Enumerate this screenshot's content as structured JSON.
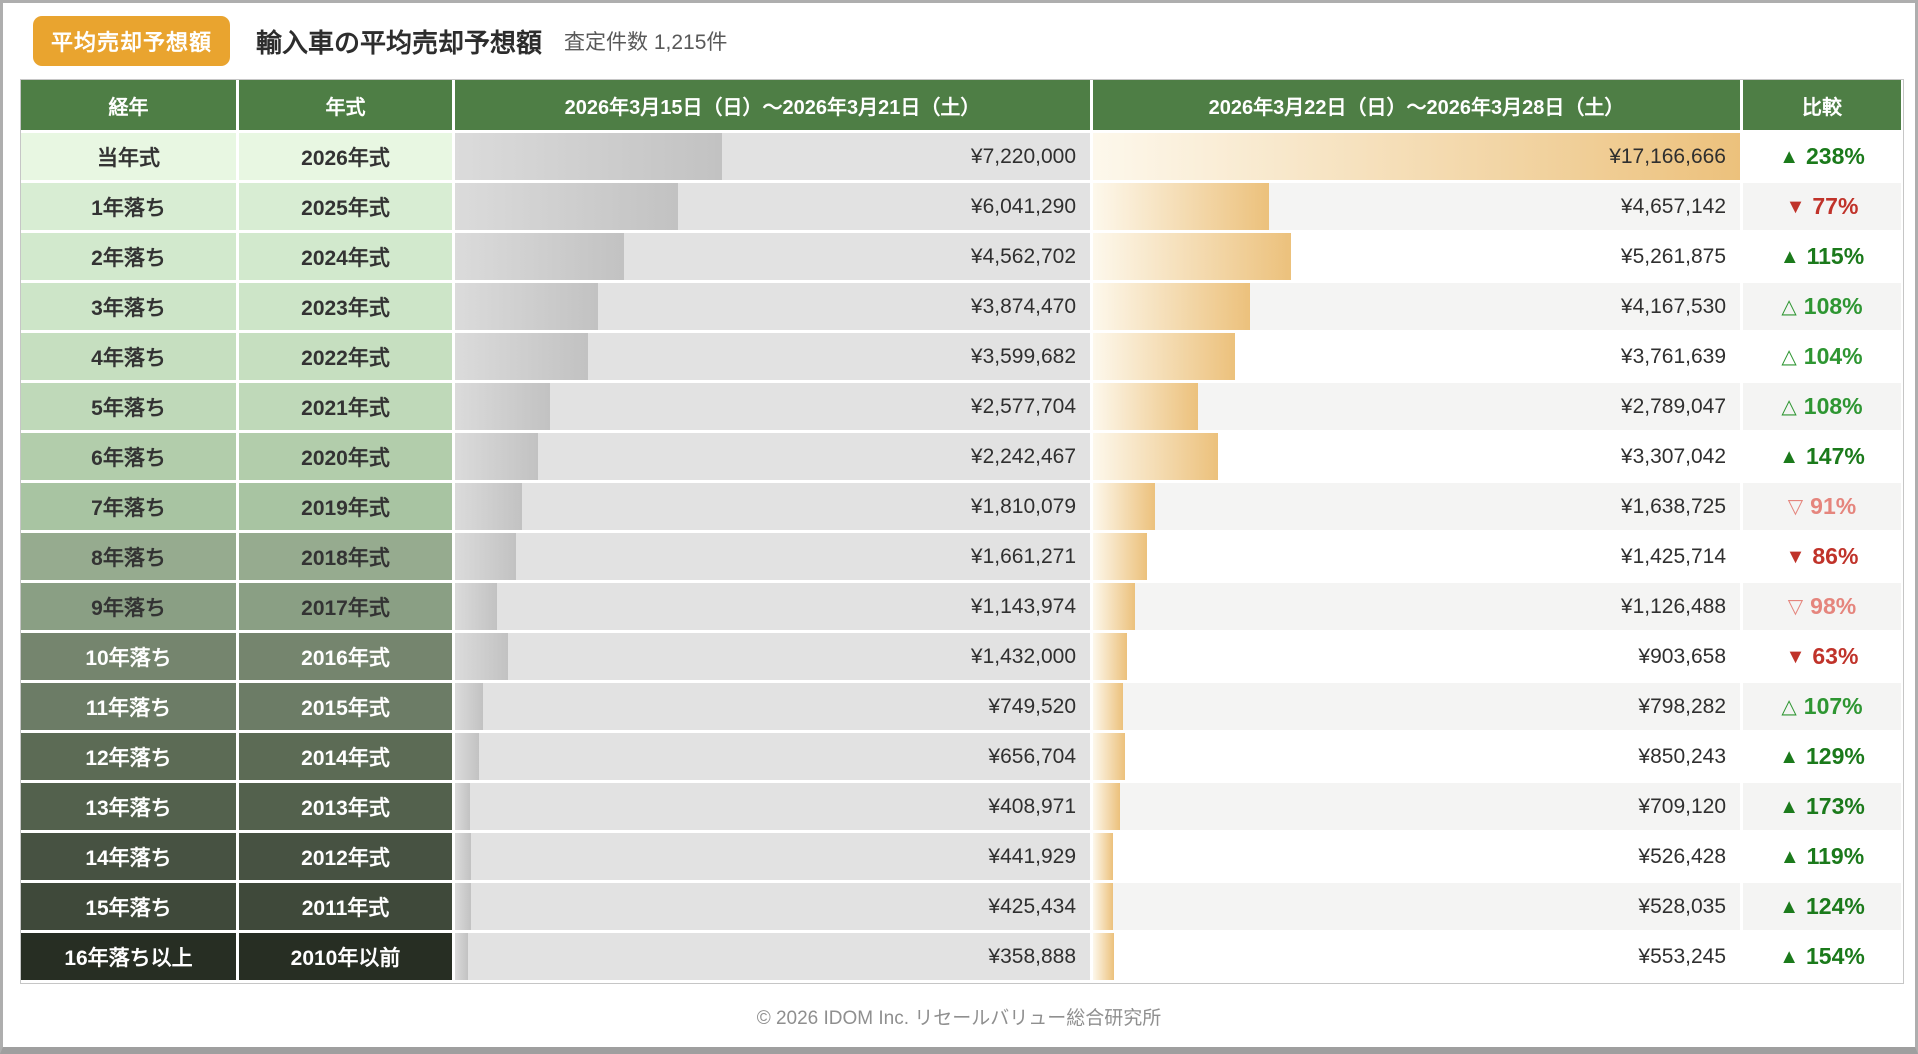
{
  "header": {
    "badge": "平均売却予想額",
    "badge_color": "#e9a42f",
    "title": "輸入車の平均売却予想額",
    "subtitle": "査定件数 1,215件"
  },
  "table": {
    "columns": [
      "経年",
      "年式",
      "2026年3月15日（日）〜2026年3月21日（土）",
      "2026年3月22日（日）〜2026年3月28日（土）",
      "比較"
    ],
    "header_bg": "#4e7e45",
    "max_value": 17166666,
    "styles": {
      "week1_cell_bg": "#e2e2e2",
      "week1_bar_gradient": [
        "#dbdbdb",
        "#c2c2c2"
      ],
      "week2_bar_gradient": [
        "#fdf8ec",
        "#ecc17c"
      ],
      "alt_row_bg": "#f4f4f3",
      "plain_row_bg": "#ffffff",
      "comparison_colors": {
        "up_filled": "#1b7a1b",
        "up_outline": "#2e9632",
        "down_filled": "#c0332a",
        "down_outline": "#e5857d"
      }
    },
    "rows": [
      {
        "age": "当年式",
        "model_year": "2026年式",
        "label_bg": "#e8f7e2",
        "label_text": "#333333",
        "week1_value": 7220000,
        "week1_display": "¥7,220,000",
        "week2_value": 17166666,
        "week2_display": "¥17,166,666",
        "compare_pct": "238%",
        "direction": "up",
        "filled": true
      },
      {
        "age": "1年落ち",
        "model_year": "2025年式",
        "label_bg": "#d8edd3",
        "label_text": "#333333",
        "week1_value": 6041290,
        "week1_display": "¥6,041,290",
        "week2_value": 4657142,
        "week2_display": "¥4,657,142",
        "compare_pct": "77%",
        "direction": "down",
        "filled": true
      },
      {
        "age": "2年落ち",
        "model_year": "2024年式",
        "label_bg": "#d2e9cd",
        "label_text": "#333333",
        "week1_value": 4562702,
        "week1_display": "¥4,562,702",
        "week2_value": 5261875,
        "week2_display": "¥5,261,875",
        "compare_pct": "115%",
        "direction": "up",
        "filled": true
      },
      {
        "age": "3年落ち",
        "model_year": "2023年式",
        "label_bg": "#cde5c8",
        "label_text": "#333333",
        "week1_value": 3874470,
        "week1_display": "¥3,874,470",
        "week2_value": 4167530,
        "week2_display": "¥4,167,530",
        "compare_pct": "108%",
        "direction": "up",
        "filled": false
      },
      {
        "age": "4年落ち",
        "model_year": "2022年式",
        "label_bg": "#c6dfc0",
        "label_text": "#333333",
        "week1_value": 3599682,
        "week1_display": "¥3,599,682",
        "week2_value": 3761639,
        "week2_display": "¥3,761,639",
        "compare_pct": "104%",
        "direction": "up",
        "filled": false
      },
      {
        "age": "5年落ち",
        "model_year": "2021年式",
        "label_bg": "#bfd9b9",
        "label_text": "#333333",
        "week1_value": 2577704,
        "week1_display": "¥2,577,704",
        "week2_value": 2789047,
        "week2_display": "¥2,789,047",
        "compare_pct": "108%",
        "direction": "up",
        "filled": false
      },
      {
        "age": "6年落ち",
        "model_year": "2020年式",
        "label_bg": "#b2cdab",
        "label_text": "#333333",
        "week1_value": 2242467,
        "week1_display": "¥2,242,467",
        "week2_value": 3307042,
        "week2_display": "¥3,307,042",
        "compare_pct": "147%",
        "direction": "up",
        "filled": true
      },
      {
        "age": "7年落ち",
        "model_year": "2019年式",
        "label_bg": "#a8c4a2",
        "label_text": "#333333",
        "week1_value": 1810079,
        "week1_display": "¥1,810,079",
        "week2_value": 1638725,
        "week2_display": "¥1,638,725",
        "compare_pct": "91%",
        "direction": "down",
        "filled": false
      },
      {
        "age": "8年落ち",
        "model_year": "2018年式",
        "label_bg": "#96ab8f",
        "label_text": "#333333",
        "week1_value": 1661271,
        "week1_display": "¥1,661,271",
        "week2_value": 1425714,
        "week2_display": "¥1,425,714",
        "compare_pct": "86%",
        "direction": "down",
        "filled": true
      },
      {
        "age": "9年落ち",
        "model_year": "2017年式",
        "label_bg": "#8a9f84",
        "label_text": "#333333",
        "week1_value": 1143974,
        "week1_display": "¥1,143,974",
        "week2_value": 1126488,
        "week2_display": "¥1,126,488",
        "compare_pct": "98%",
        "direction": "down",
        "filled": false
      },
      {
        "age": "10年落ち",
        "model_year": "2016年式",
        "label_bg": "#75856e",
        "label_text": "#ffffff",
        "week1_value": 1432000,
        "week1_display": "¥1,432,000",
        "week2_value": 903658,
        "week2_display": "¥903,658",
        "compare_pct": "63%",
        "direction": "down",
        "filled": true
      },
      {
        "age": "11年落ち",
        "model_year": "2015年式",
        "label_bg": "#6c7c66",
        "label_text": "#ffffff",
        "week1_value": 749520,
        "week1_display": "¥749,520",
        "week2_value": 798282,
        "week2_display": "¥798,282",
        "compare_pct": "107%",
        "direction": "up",
        "filled": false
      },
      {
        "age": "12年落ち",
        "model_year": "2014年式",
        "label_bg": "#5c6b55",
        "label_text": "#ffffff",
        "week1_value": 656704,
        "week1_display": "¥656,704",
        "week2_value": 850243,
        "week2_display": "¥850,243",
        "compare_pct": "129%",
        "direction": "up",
        "filled": true
      },
      {
        "age": "13年落ち",
        "model_year": "2013年式",
        "label_bg": "#53614d",
        "label_text": "#ffffff",
        "week1_value": 408971,
        "week1_display": "¥408,971",
        "week2_value": 709120,
        "week2_display": "¥709,120",
        "compare_pct": "173%",
        "direction": "up",
        "filled": true
      },
      {
        "age": "14年落ち",
        "model_year": "2012年式",
        "label_bg": "#475242",
        "label_text": "#ffffff",
        "week1_value": 441929,
        "week1_display": "¥441,929",
        "week2_value": 526428,
        "week2_display": "¥526,428",
        "compare_pct": "119%",
        "direction": "up",
        "filled": true
      },
      {
        "age": "15年落ち",
        "model_year": "2011年式",
        "label_bg": "#3f493a",
        "label_text": "#ffffff",
        "week1_value": 425434,
        "week1_display": "¥425,434",
        "week2_value": 528035,
        "week2_display": "¥528,035",
        "compare_pct": "124%",
        "direction": "up",
        "filled": true
      },
      {
        "age": "16年落ち以上",
        "model_year": "2010年以前",
        "label_bg": "#272e23",
        "label_text": "#ffffff",
        "week1_value": 358888,
        "week1_display": "¥358,888",
        "week2_value": 553245,
        "week2_display": "¥553,245",
        "compare_pct": "154%",
        "direction": "up",
        "filled": true
      }
    ]
  },
  "chart_data": {
    "type": "bar",
    "title": "輸入車の平均売却予想額",
    "subtitle": "査定件数 1,215件",
    "categories": [
      "当年式/2026年式",
      "1年落ち/2025年式",
      "2年落ち/2024年式",
      "3年落ち/2023年式",
      "4年落ち/2022年式",
      "5年落ち/2021年式",
      "6年落ち/2020年式",
      "7年落ち/2019年式",
      "8年落ち/2018年式",
      "9年落ち/2017年式",
      "10年落ち/2016年式",
      "11年落ち/2015年式",
      "12年落ち/2014年式",
      "13年落ち/2013年式",
      "14年落ち/2012年式",
      "15年落ち/2011年式",
      "16年落ち以上/2010年以前"
    ],
    "series": [
      {
        "name": "2026年3月15日（日）〜2026年3月21日（土）",
        "values": [
          7220000,
          6041290,
          4562702,
          3874470,
          3599682,
          2577704,
          2242467,
          1810079,
          1661271,
          1143974,
          1432000,
          749520,
          656704,
          408971,
          441929,
          425434,
          358888
        ]
      },
      {
        "name": "2026年3月22日（日）〜2026年3月28日（土）",
        "values": [
          17166666,
          4657142,
          5261875,
          4167530,
          3761639,
          2789047,
          3307042,
          1638725,
          1425714,
          1126488,
          903658,
          798282,
          850243,
          709120,
          526428,
          528035,
          553245
        ]
      },
      {
        "name": "比較",
        "values": [
          "▲238%",
          "▼77%",
          "▲115%",
          "△108%",
          "△104%",
          "△108%",
          "▲147%",
          "▽91%",
          "▼86%",
          "▽98%",
          "▼63%",
          "△107%",
          "▲129%",
          "▲173%",
          "▲119%",
          "▲124%",
          "▲154%"
        ]
      }
    ],
    "xlim": [
      0,
      17166666
    ],
    "orientation": "horizontal"
  },
  "footer": {
    "copyright": "© 2026 IDOM Inc. リセールバリュー総合研究所"
  }
}
